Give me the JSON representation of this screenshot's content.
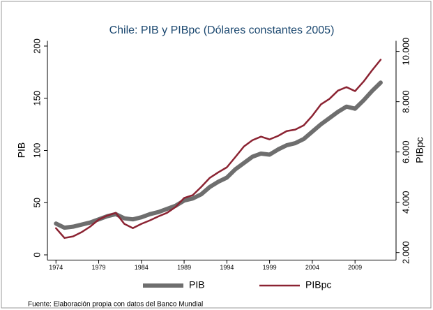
{
  "chart_data": {
    "type": "line",
    "title": "Chile: PIB y PIBpc (Dólares constantes 2005)",
    "ylabel": "PIB",
    "y2label": "PIBpc",
    "footnote": "Fuente: Elaboración propia con datos del Banco Mundial",
    "x": [
      1974,
      1975,
      1976,
      1977,
      1978,
      1979,
      1980,
      1981,
      1982,
      1983,
      1984,
      1985,
      1986,
      1987,
      1988,
      1989,
      1990,
      1991,
      1992,
      1993,
      1994,
      1995,
      1996,
      1997,
      1998,
      1999,
      2000,
      2001,
      2002,
      2003,
      2004,
      2005,
      2006,
      2007,
      2008,
      2009,
      2010,
      2011,
      2012
    ],
    "series": [
      {
        "name": "PIB",
        "color": "#6e6e6e",
        "axis": "y",
        "values": [
          30,
          26,
          27,
          29,
          31,
          34,
          37,
          39,
          35,
          34,
          36,
          39,
          41,
          44,
          47,
          52,
          54,
          58,
          65,
          70,
          74,
          82,
          88,
          94,
          97,
          96,
          101,
          105,
          107,
          111,
          118,
          125,
          131,
          137,
          142,
          140,
          148,
          157,
          165
        ]
      },
      {
        "name": "PIBpc",
        "color": "#8b2332",
        "axis": "y2",
        "values": [
          2970,
          2580,
          2640,
          2810,
          3030,
          3310,
          3470,
          3580,
          3140,
          2970,
          3140,
          3280,
          3440,
          3580,
          3810,
          4170,
          4280,
          4610,
          4970,
          5190,
          5390,
          5800,
          6220,
          6470,
          6610,
          6500,
          6640,
          6830,
          6890,
          7060,
          7440,
          7890,
          8110,
          8440,
          8580,
          8420,
          8800,
          9250,
          9670
        ]
      }
    ],
    "xlim": [
      1973,
      2013.8
    ],
    "xticks": [
      1974,
      1979,
      1984,
      1989,
      1994,
      1999,
      2004,
      2009
    ],
    "ylim": [
      -5,
      205
    ],
    "yticks": [
      0,
      50,
      100,
      150,
      200
    ],
    "y2lim": [
      1700,
      10420
    ],
    "y2ticks": [
      {
        "value": 2000,
        "label": "2.000"
      },
      {
        "value": 4000,
        "label": "4.000"
      },
      {
        "value": 6000,
        "label": "6.000"
      },
      {
        "value": 8000,
        "label": "8.000"
      },
      {
        "value": 10000,
        "label": "10.000"
      }
    ],
    "grid": false,
    "legend": "bottom"
  }
}
